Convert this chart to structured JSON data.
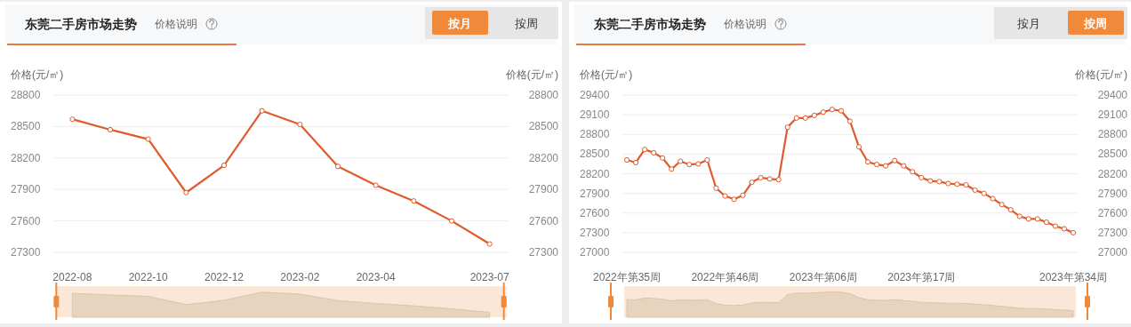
{
  "chart_data": [
    {
      "type": "line",
      "title": "东莞二手房市场走势",
      "subtitle": "价格说明",
      "annotations": [
        "按月",
        "按周"
      ],
      "ylabel": "价格(元/㎡)",
      "y2label": "价格(元/㎡)",
      "categories": [
        "2022-08",
        null,
        "2022-10",
        null,
        "2022-12",
        null,
        "2023-02",
        null,
        "2023-04",
        null,
        null,
        "2023-07"
      ],
      "series": [
        {
          "color": "#e05a2b",
          "values": [
            28570,
            28470,
            28380,
            27870,
            28130,
            28650,
            28520,
            28120,
            27940,
            27790,
            27600,
            27380
          ]
        }
      ],
      "ylim": [
        27300,
        28800
      ],
      "yticks": [
        27300,
        27600,
        27900,
        28200,
        28500,
        28800
      ],
      "y2lim": [
        27300,
        28800
      ],
      "y2ticks": [
        27300,
        27600,
        27900,
        28200,
        28500,
        28800
      ],
      "grid": "y",
      "marker": "circle"
    },
    {
      "type": "line",
      "title": "东莞二手房市场走势",
      "subtitle": "价格说明",
      "annotations": [
        "按月",
        "按周"
      ],
      "ylabel": "价格(元/㎡)",
      "y2label": "价格(元/㎡)",
      "categories": [
        "2022年第35周",
        null,
        null,
        null,
        null,
        null,
        null,
        null,
        null,
        null,
        null,
        "2022年第46周",
        null,
        null,
        null,
        null,
        null,
        null,
        null,
        null,
        null,
        null,
        "2023年第06周",
        null,
        null,
        null,
        null,
        null,
        null,
        null,
        null,
        null,
        null,
        "2023年第17周",
        null,
        null,
        null,
        null,
        null,
        null,
        null,
        null,
        null,
        null,
        null,
        null,
        null,
        null,
        null,
        null,
        "2023年第34周"
      ],
      "series": [
        {
          "color": "#e05a2b",
          "values": [
            28410,
            28370,
            28570,
            28520,
            28440,
            28270,
            28390,
            28340,
            28350,
            28410,
            27980,
            27860,
            27810,
            27870,
            28070,
            28140,
            28120,
            28110,
            28910,
            29050,
            29050,
            29090,
            29140,
            29180,
            29160,
            29000,
            28610,
            28380,
            28340,
            28320,
            28400,
            28320,
            28230,
            28140,
            28090,
            28080,
            28050,
            28040,
            28030,
            27950,
            27900,
            27820,
            27730,
            27650,
            27550,
            27510,
            27510,
            27460,
            27400,
            27360,
            27300
          ]
        }
      ],
      "ylim": [
        27000,
        29400
      ],
      "yticks": [
        27000,
        27300,
        27600,
        27900,
        28200,
        28500,
        28800,
        29100,
        29400
      ],
      "y2lim": [
        27000,
        29400
      ],
      "y2ticks": [
        27000,
        27300,
        27600,
        27900,
        28200,
        28500,
        28800,
        29100,
        29400
      ],
      "grid": "y",
      "marker": "circle"
    }
  ]
}
